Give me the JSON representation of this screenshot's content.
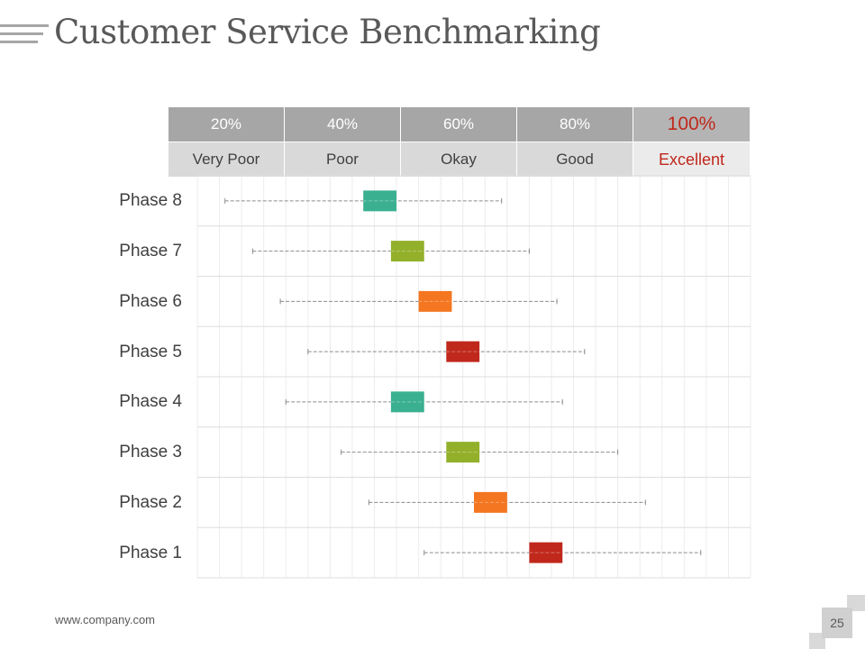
{
  "slide": {
    "title": "Customer Service Benchmarking",
    "footer_url": "www.company.com",
    "page_number": "25"
  },
  "colors": {
    "teal": "#3ab091",
    "green": "#92b02a",
    "orange": "#f47621",
    "red": "#c0281c",
    "excellent_text": "#c0281c"
  },
  "chart_data": {
    "type": "range-box",
    "title": "Customer Service Benchmarking",
    "scale": [
      {
        "percent": "20%",
        "rating": "Very Poor"
      },
      {
        "percent": "40%",
        "rating": "Poor"
      },
      {
        "percent": "60%",
        "rating": "Okay"
      },
      {
        "percent": "80%",
        "rating": "Good"
      },
      {
        "percent": "100%",
        "rating": "Excellent"
      }
    ],
    "xlim": [
      0,
      100
    ],
    "grid": true,
    "phases": [
      {
        "label": "Phase 8",
        "min": 5,
        "max": 55,
        "box_low": 30,
        "box_high": 36,
        "color": "teal"
      },
      {
        "label": "Phase 7",
        "min": 10,
        "max": 60,
        "box_low": 35,
        "box_high": 41,
        "color": "green"
      },
      {
        "label": "Phase 6",
        "min": 15,
        "max": 65,
        "box_low": 40,
        "box_high": 46,
        "color": "orange"
      },
      {
        "label": "Phase 5",
        "min": 20,
        "max": 70,
        "box_low": 45,
        "box_high": 51,
        "color": "red"
      },
      {
        "label": "Phase 4",
        "min": 16,
        "max": 66,
        "box_low": 35,
        "box_high": 41,
        "color": "teal"
      },
      {
        "label": "Phase 3",
        "min": 26,
        "max": 76,
        "box_low": 45,
        "box_high": 51,
        "color": "green"
      },
      {
        "label": "Phase 2",
        "min": 31,
        "max": 81,
        "box_low": 50,
        "box_high": 56,
        "color": "orange"
      },
      {
        "label": "Phase 1",
        "min": 41,
        "max": 91,
        "box_low": 60,
        "box_high": 66,
        "color": "red"
      }
    ]
  }
}
